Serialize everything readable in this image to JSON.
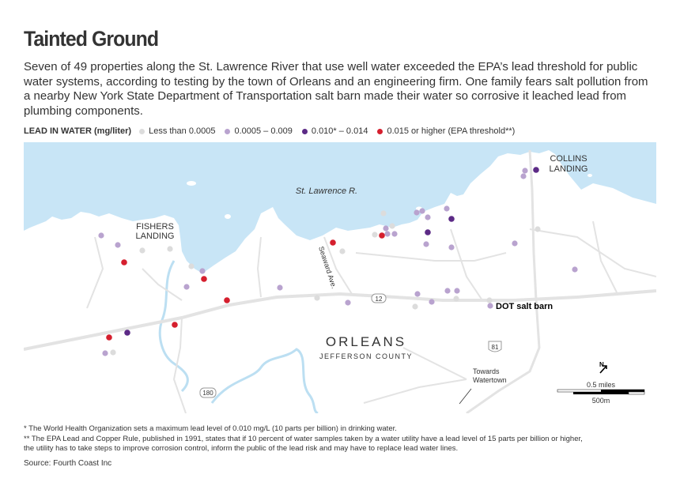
{
  "title": "Tainted Ground",
  "intro": "Seven of 49 properties along the St. Lawrence River that use well water exceeded the EPA’s lead threshold for public water systems, according to testing by the town of Orleans and an engineering firm. One family fears salt pollution from a nearby New York State Department of Transportation salt barn made their water so corrosive it leached lead from plumbing components.",
  "legend": {
    "title": "LEAD IN WATER (mg/liter)",
    "items": [
      {
        "label": "Less than 0.0005",
        "color": "#dcdcdc"
      },
      {
        "label": "0.0005 – 0.009",
        "color": "#b9a3cf"
      },
      {
        "label": "0.010* – 0.014",
        "color": "#5c2a86"
      },
      {
        "label": "0.015 or higher (EPA threshold**)",
        "color": "#d51f2e"
      }
    ]
  },
  "map": {
    "colors": {
      "water": "#c8e5f6",
      "land": "#ffffff",
      "road": "#e3e3e3",
      "creek": "#bcdff2"
    },
    "labels": {
      "river": "St. Lawrence R.",
      "fishers_line1": "FISHERS",
      "fishers_line2": "LANDING",
      "collins_line1": "COLLINS",
      "collins_line2": "LANDING",
      "seaward": "Seaward Ave.",
      "town": "ORLEANS",
      "county": "JEFFERSON COUNTY",
      "salt_barn": "DOT salt barn",
      "towards_line1": "Towards",
      "towards_line2": "Watertown",
      "route12": "12",
      "route81": "81",
      "route180": "180",
      "scale_miles": "0.5 miles",
      "scale_m": "500m"
    }
  },
  "notes": [
    " * The World Health Organization sets a maximum lead level of 0.010 mg/L (10 parts per billion) in drinking water.",
    "** The EPA Lead and Copper Rule, published in 1991, states that if 10 percent of water samples taken by a water utility have a lead level of 15 parts per billion or higher,",
    "the utility has to take steps to improve corrosion control, inform the public of the lead risk and may have to replace lead water lines."
  ],
  "source": "Source: Fourth Coast Inc"
}
